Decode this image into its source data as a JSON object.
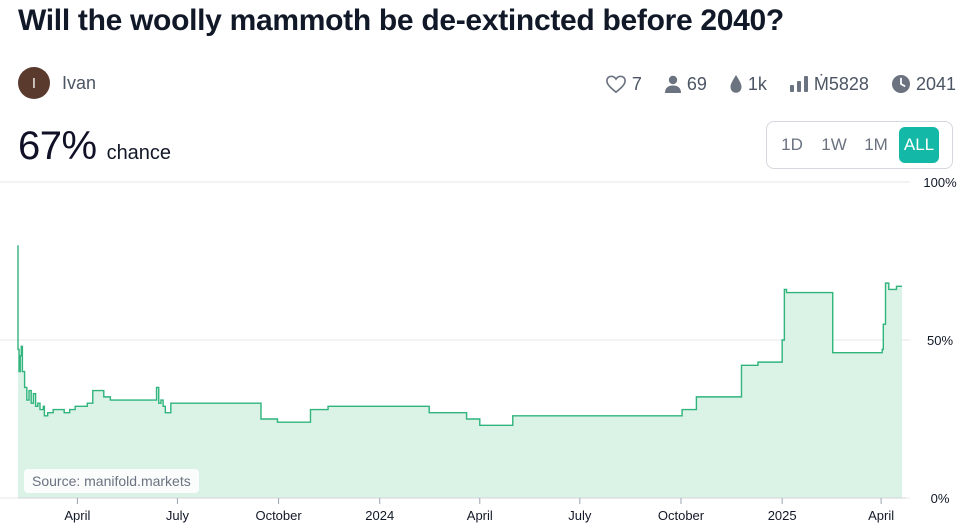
{
  "question": "Will the woolly mammoth be de-extincted before 2040?",
  "creator": {
    "initial": "I",
    "name": "Ivan"
  },
  "stats": {
    "likes": "7",
    "traders": "69",
    "liquidity": "1k",
    "volume": "Ṁ5828",
    "close_year": "2041"
  },
  "probability": {
    "value": "67%",
    "label": "chance"
  },
  "periods": [
    "1D",
    "1W",
    "1M",
    "ALL"
  ],
  "selected_period": "ALL",
  "source_label": "Source: manifold.markets",
  "colors": {
    "accent": "#14b8a6",
    "line": "#2fb47c",
    "fill": "#dbf2e6"
  },
  "chart_data": {
    "type": "area",
    "x_axis": "time",
    "xlim": [
      "2023-02-06",
      "2025-04-20"
    ],
    "ylim": [
      0,
      100
    ],
    "y_ticks": [
      "100%",
      "50%",
      "0%"
    ],
    "y_tick_values": [
      100,
      50,
      0
    ],
    "x_tick_labels": [
      "April",
      "July",
      "October",
      "2024",
      "April",
      "July",
      "October",
      "2025",
      "April"
    ],
    "x_tick_dates": [
      "2023-04-01",
      "2023-07-01",
      "2023-10-01",
      "2024-01-01",
      "2024-04-01",
      "2024-07-01",
      "2024-10-01",
      "2025-01-01",
      "2025-04-01"
    ],
    "series": [
      {
        "x": [
          "2023-02-06",
          "2023-02-06",
          "2023-02-07",
          "2023-02-08",
          "2023-02-09",
          "2023-02-10",
          "2023-02-12",
          "2023-02-14",
          "2023-02-16",
          "2023-02-18",
          "2023-02-20",
          "2023-02-22",
          "2023-02-24",
          "2023-02-26",
          "2023-03-01",
          "2023-03-02",
          "2023-03-05",
          "2023-03-10",
          "2023-03-15",
          "2023-03-20",
          "2023-03-25",
          "2023-03-30",
          "2023-04-05",
          "2023-04-10",
          "2023-04-15",
          "2023-04-20",
          "2023-04-25",
          "2023-05-01",
          "2023-05-05",
          "2023-05-10",
          "2023-05-20",
          "2023-06-10",
          "2023-06-12",
          "2023-06-14",
          "2023-06-16",
          "2023-06-18",
          "2023-06-20",
          "2023-06-25",
          "2023-07-01",
          "2023-08-01",
          "2023-09-01",
          "2023-09-10",
          "2023-09-15",
          "2023-09-20",
          "2023-09-30",
          "2023-10-06",
          "2023-10-15",
          "2023-10-20",
          "2023-10-30",
          "2023-11-15",
          "2023-12-15",
          "2024-01-01",
          "2024-01-15",
          "2024-02-15",
          "2024-03-01",
          "2024-03-20",
          "2024-04-01",
          "2024-04-25",
          "2024-05-01",
          "2024-06-01",
          "2024-07-01",
          "2024-08-01",
          "2024-09-01",
          "2024-09-29",
          "2024-10-02",
          "2024-10-15",
          "2024-11-01",
          "2024-11-22",
          "2024-11-25",
          "2024-12-10",
          "2024-12-15",
          "2024-12-28",
          "2025-01-01",
          "2025-01-03",
          "2025-01-05",
          "2025-01-20",
          "2025-02-01",
          "2025-02-15",
          "2025-02-16",
          "2025-03-01",
          "2025-03-15",
          "2025-04-01",
          "2025-04-02",
          "2025-04-03",
          "2025-04-05",
          "2025-04-08",
          "2025-04-15"
        ],
        "y": [
          80,
          47,
          40,
          45,
          48,
          40,
          35,
          31,
          34,
          30,
          33,
          29,
          30,
          28,
          29,
          26,
          27,
          28,
          28,
          27,
          28,
          29,
          29,
          30,
          34,
          34,
          32,
          31,
          31,
          31,
          31,
          31,
          35,
          30,
          31,
          29,
          27,
          30,
          30,
          30,
          30,
          30,
          25,
          25,
          24,
          24,
          24,
          24,
          28,
          29,
          29,
          29,
          29,
          27,
          27,
          25,
          23,
          23,
          26,
          26,
          26,
          26,
          26,
          26,
          28,
          32,
          32,
          32,
          42,
          43,
          43,
          43,
          50,
          66,
          65,
          65,
          65,
          65,
          46,
          46,
          46,
          46,
          47,
          55,
          68,
          66,
          67
        ]
      }
    ]
  }
}
